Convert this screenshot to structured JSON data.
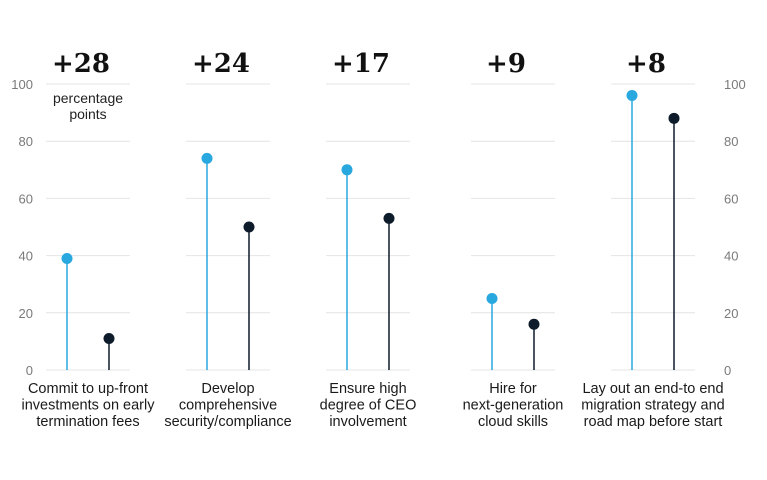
{
  "chart_data": {
    "type": "lollipop",
    "ylim": [
      0,
      100
    ],
    "yticks": [
      "0",
      "20",
      "40",
      "60",
      "80",
      "100"
    ],
    "unit_label": [
      "percentage",
      "points"
    ],
    "colors": {
      "series_a": "#29a8e0",
      "series_b": "#0d1b2a",
      "grid": "#e4e4e4",
      "tick": "#7a7a7a"
    },
    "groups": [
      {
        "difference": "+28",
        "label": [
          "Commit to up-front",
          "investments on early",
          "termination fees"
        ],
        "a": 39,
        "b": 11
      },
      {
        "difference": "+24",
        "label": [
          "Develop",
          "comprehensive",
          "security/compliance"
        ],
        "a": 74,
        "b": 50
      },
      {
        "difference": "+17",
        "label": [
          "Ensure high",
          "degree of CEO",
          "involvement"
        ],
        "a": 70,
        "b": 53
      },
      {
        "difference": "+9",
        "label": [
          "Hire for",
          "next-generation",
          "cloud skills"
        ],
        "a": 25,
        "b": 16
      },
      {
        "difference": "+8",
        "label": [
          "Lay out an end-to end",
          "migration strategy and",
          "road map before start"
        ],
        "a": 96,
        "b": 88
      }
    ]
  }
}
